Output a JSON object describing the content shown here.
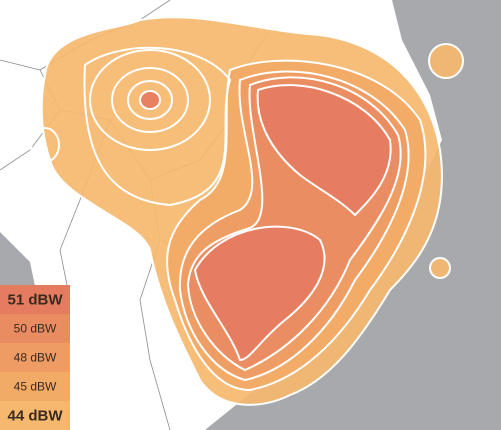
{
  "legend": {
    "items": [
      {
        "label": "51 dBW",
        "color": "#e57c5f"
      },
      {
        "label": "50 dBW",
        "color": "#ea8c62"
      },
      {
        "label": "48 dBW",
        "color": "#ee9b64"
      },
      {
        "label": "45 dBW",
        "color": "#f2aa67"
      },
      {
        "label": "44 dBW",
        "color": "#f5b86e"
      }
    ]
  }
}
